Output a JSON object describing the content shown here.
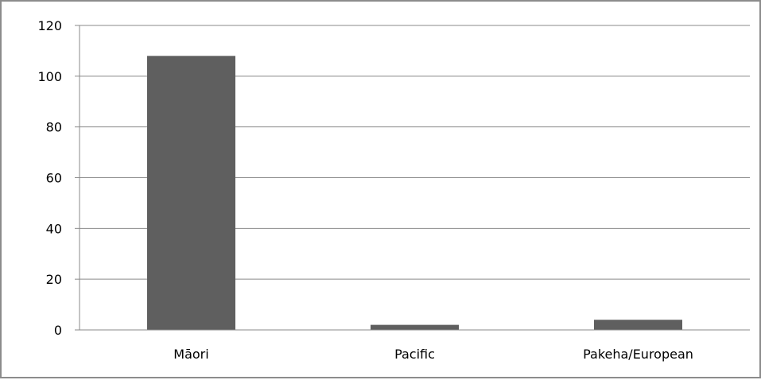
{
  "chart_data": {
    "type": "bar",
    "title": "",
    "xlabel": "",
    "ylabel": "",
    "categories": [
      "Māori",
      "Pacific",
      "Pakeha/European"
    ],
    "values": [
      108,
      2,
      4
    ],
    "ylim": [
      0,
      120
    ],
    "yticks": [
      0,
      20,
      40,
      60,
      80,
      100,
      120
    ],
    "grid": true,
    "legend": "none",
    "colors": {
      "bar": "#5f5f5f",
      "grid": "#8a8a8a",
      "axis": "#8a8a8a",
      "frame": "#8c8c8c"
    }
  }
}
